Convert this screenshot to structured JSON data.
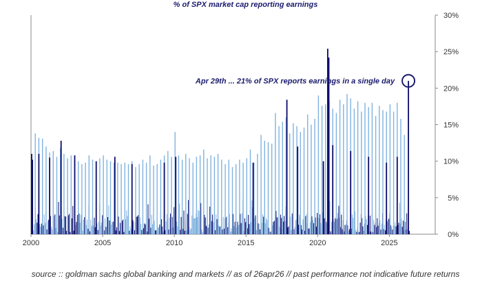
{
  "title": "% of SPX market cap reporting earnings",
  "source_note": "source :: goldman sachs global banking and markets // as of 26apr26 // past performance not indicative future returns",
  "annotation": {
    "text": "Apr 29th ... 21% of SPX reports earnings in a single day",
    "x": 2026.33,
    "y": 21
  },
  "colors": {
    "dark_bars": "#0a0a6b",
    "light_bars": "#7fb2df",
    "title": "#1a1a6e",
    "axis": "#888888",
    "annotation": "#1a1a6e"
  },
  "chart_data": {
    "type": "bar",
    "title": "% of SPX market cap reporting earnings",
    "xlabel": "",
    "ylabel": "",
    "xlim": [
      2000,
      2028.2
    ],
    "ylim": [
      0,
      30
    ],
    "x_ticks": [
      2000,
      2005,
      2010,
      2015,
      2020,
      2025
    ],
    "x_tick_labels": [
      "2000",
      "2005",
      "2010",
      "2015",
      "2020",
      "2025"
    ],
    "y_ticks": [
      0,
      5,
      10,
      15,
      20,
      25,
      30
    ],
    "y_tick_labels": [
      "0%",
      "5%",
      "10%",
      "15%",
      "20%",
      "25%",
      "30%"
    ],
    "y_axis_side": "right",
    "grid": false,
    "legend": "none",
    "note": "Daily series; values below are the approximate peaks of each quarterly reporting-season spike",
    "series": [
      {
        "color": "light",
        "x": [
          2000.3,
          2000.55,
          2000.8,
          2001.05,
          2001.3,
          2001.55,
          2001.8,
          2002.05,
          2002.3,
          2002.55,
          2002.8,
          2003.05,
          2003.3,
          2003.55,
          2003.8,
          2004.05,
          2004.3,
          2004.55,
          2004.8,
          2005.05,
          2005.3,
          2005.55,
          2005.8,
          2006.05,
          2006.3,
          2006.55,
          2006.8,
          2007.05,
          2007.3,
          2007.55,
          2007.8,
          2008.05,
          2008.3,
          2008.55,
          2008.8,
          2009.05,
          2009.3,
          2009.55,
          2009.8,
          2010.05,
          2010.3,
          2010.55,
          2010.8,
          2011.05,
          2011.3,
          2011.55,
          2011.8,
          2012.05,
          2012.3,
          2012.55,
          2012.8,
          2013.05,
          2013.3,
          2013.55,
          2013.8,
          2014.05,
          2014.3,
          2014.55,
          2014.8,
          2015.05,
          2015.3,
          2015.55,
          2015.8,
          2016.05,
          2016.3,
          2016.55,
          2016.8,
          2017.05,
          2017.3,
          2017.55,
          2017.8,
          2018.05,
          2018.3,
          2018.55,
          2018.8,
          2019.05,
          2019.3,
          2019.55,
          2019.8,
          2020.05,
          2020.3,
          2020.55,
          2020.8,
          2021.05,
          2021.3,
          2021.55,
          2021.8,
          2022.05,
          2022.3,
          2022.55,
          2022.8,
          2023.05,
          2023.3,
          2023.55,
          2023.8,
          2024.05,
          2024.3,
          2024.55,
          2024.8,
          2025.05,
          2025.3,
          2025.55,
          2025.8,
          2026.05
        ],
        "values": [
          13.8,
          13.2,
          13.1,
          12.0,
          11.2,
          11.4,
          10.6,
          11.8,
          11.0,
          10.4,
          10.8,
          10.2,
          10.0,
          9.6,
          9.8,
          10.8,
          10.2,
          9.6,
          10.4,
          10.8,
          10.2,
          10.0,
          9.8,
          9.8,
          9.6,
          9.8,
          9.6,
          10.0,
          9.2,
          9.6,
          10.2,
          9.8,
          10.8,
          9.4,
          9.6,
          10.2,
          10.8,
          11.4,
          10.6,
          14.0,
          10.8,
          10.2,
          11.0,
          10.4,
          9.8,
          10.6,
          10.8,
          11.6,
          10.4,
          10.8,
          10.6,
          11.0,
          10.2,
          9.6,
          10.2,
          9.2,
          9.6,
          10.2,
          9.8,
          10.4,
          11.6,
          9.8,
          11.0,
          13.6,
          12.8,
          12.6,
          12.4,
          16.6,
          14.8,
          15.4,
          16.0,
          13.8,
          15.2,
          14.8,
          14.0,
          14.6,
          16.4,
          15.0,
          15.8,
          19.0,
          17.6,
          17.8,
          18.2,
          17.2,
          16.6,
          18.4,
          17.8,
          19.2,
          18.6,
          17.2,
          18.2,
          16.8,
          18.0,
          17.4,
          18.0,
          16.2,
          17.6,
          17.0,
          16.8,
          17.8,
          16.8,
          18.0,
          15.8,
          13.6
        ]
      },
      {
        "color": "dark",
        "x": [
          2000.05,
          2000.1,
          2000.55,
          2001.3,
          2002.1,
          2003.05,
          2004.55,
          2005.85,
          2007.05,
          2009.3,
          2010.1,
          2015.5,
          2017.85,
          2018.6,
          2020.4,
          2020.7,
          2020.78,
          2021.05,
          2022.3,
          2023.55,
          2024.8,
          2025.55,
          2026.33
        ],
        "values": [
          11.0,
          10.2,
          11.0,
          10.5,
          12.8,
          10.8,
          10.0,
          10.6,
          9.6,
          9.8,
          10.6,
          9.8,
          18.4,
          12.0,
          10.0,
          25.4,
          24.2,
          12.2,
          11.4,
          10.6,
          9.8,
          10.6,
          21.0
        ]
      }
    ]
  }
}
